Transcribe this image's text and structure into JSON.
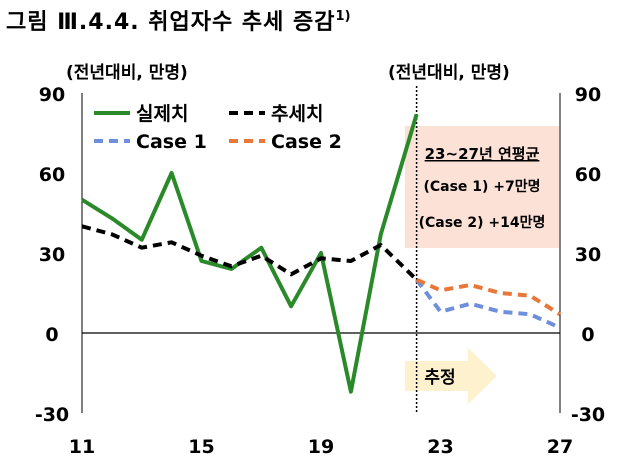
{
  "title": {
    "text": "그림 Ⅲ.4.4. 취업자수 추세 증감",
    "note": "1)"
  },
  "units": {
    "left": "(전년대비, 만명)",
    "right": "(전년대비, 만명)"
  },
  "annotation": {
    "heading": "23~27년 연평균",
    "line1": "(Case 1) +7만명",
    "line2": "(Case 2) +14만명",
    "forecast_label": "추정"
  },
  "colors": {
    "actual": "#2a8a2a",
    "trend": "#000000",
    "case1": "#6f8fdc",
    "case2": "#e8773a",
    "box": "#fbe1d6",
    "arrow": "#fdf2cd"
  },
  "chart_data": {
    "type": "line",
    "xlabel": "",
    "ylabel": "(전년대비, 만명)",
    "xlim": [
      11,
      27
    ],
    "ylim": [
      -30,
      90
    ],
    "xticks": [
      "11",
      "15",
      "19",
      "23",
      "27"
    ],
    "yticks": [
      "90",
      "60",
      "30",
      "0",
      "-30"
    ],
    "legend_position": "top-left",
    "forecast_start": 22.2,
    "series": [
      {
        "name": "실제치",
        "style": "solid",
        "color": "#2a8a2a",
        "x": [
          11,
          12,
          13,
          14,
          15,
          16,
          17,
          18,
          19,
          20,
          21,
          22.2
        ],
        "y": [
          50,
          43,
          35,
          60,
          27,
          24,
          32,
          10,
          30,
          -22,
          37,
          82
        ]
      },
      {
        "name": "추세치",
        "style": "dashed",
        "color": "#000000",
        "x": [
          11,
          12,
          13,
          14,
          15,
          16,
          17,
          18,
          19,
          20,
          21,
          22.2
        ],
        "y": [
          40,
          37,
          32,
          34,
          29,
          25,
          29,
          22,
          28,
          27,
          33,
          20
        ]
      },
      {
        "name": "Case 1",
        "style": "dashed",
        "color": "#6f8fdc",
        "x": [
          22.2,
          23,
          24,
          25,
          26,
          27
        ],
        "y": [
          20,
          8,
          11,
          8,
          7,
          2
        ]
      },
      {
        "name": "Case 2",
        "style": "dashed",
        "color": "#e8773a",
        "x": [
          22.2,
          23,
          24,
          25,
          26,
          27
        ],
        "y": [
          20,
          16,
          18,
          15,
          14,
          7
        ]
      }
    ]
  }
}
